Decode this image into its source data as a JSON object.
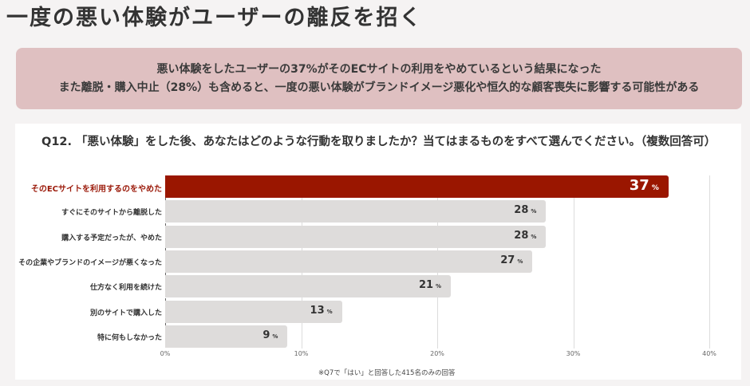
{
  "page": {
    "title": "一度の悪い体験がユーザーの離反を招く"
  },
  "summary": {
    "line1": "悪い体験をしたユーザーの37%がそのECサイトの利用をやめているという結果になった",
    "line2": "また離脱・購入中止（28%）も含めると、一度の悪い体験がブランドイメージ悪化や恒久的な顧客喪失に影響する可能性がある"
  },
  "colors": {
    "highlight": "#9a1600",
    "bar": "#dedcdb",
    "summary_bg": "#dfc0c1",
    "background": "#f5f3f3"
  },
  "chart_data": {
    "type": "bar",
    "orientation": "horizontal",
    "title": "Q12. 「悪い体験」をした後、あなたはどのような行動を取りましたか？当てはまるものをすべて選んでください。（複数回答可）",
    "categories": [
      "そのECサイトを利用するのをやめた",
      "すぐにそのサイトから離脱した",
      "購入する予定だったが、やめた",
      "その企業やブランドのイメージが悪くなった",
      "仕方なく利用を続けた",
      "別のサイトで購入した",
      "特に何もしなかった"
    ],
    "values": [
      37,
      28,
      28,
      27,
      21,
      13,
      9
    ],
    "unit": "%",
    "highlighted_index": 0,
    "xlim": [
      0,
      40
    ],
    "xticks": [
      "0%",
      "10%",
      "20%",
      "30%",
      "40%"
    ],
    "grid": true,
    "xlabel": "",
    "ylabel": "",
    "footnote": "※Q7で「はい」と回答した415名のみの回答"
  }
}
